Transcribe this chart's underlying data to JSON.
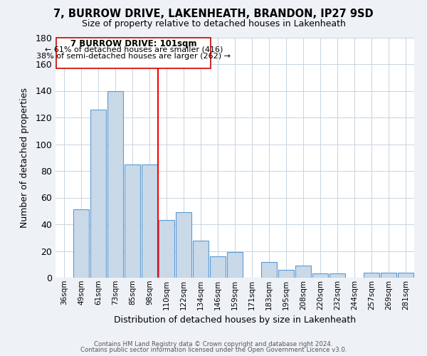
{
  "title": "7, BURROW DRIVE, LAKENHEATH, BRANDON, IP27 9SD",
  "subtitle": "Size of property relative to detached houses in Lakenheath",
  "xlabel": "Distribution of detached houses by size in Lakenheath",
  "ylabel": "Number of detached properties",
  "categories": [
    "36sqm",
    "49sqm",
    "61sqm",
    "73sqm",
    "85sqm",
    "98sqm",
    "110sqm",
    "122sqm",
    "134sqm",
    "146sqm",
    "159sqm",
    "171sqm",
    "183sqm",
    "195sqm",
    "208sqm",
    "220sqm",
    "232sqm",
    "244sqm",
    "257sqm",
    "269sqm",
    "281sqm"
  ],
  "values": [
    0,
    51,
    126,
    140,
    85,
    85,
    43,
    49,
    28,
    16,
    19,
    0,
    12,
    6,
    9,
    3,
    3,
    0,
    4,
    4,
    4
  ],
  "bar_color": "#c9d9e8",
  "bar_edge_color": "#5b9bd5",
  "ylim": [
    0,
    180
  ],
  "yticks": [
    0,
    20,
    40,
    60,
    80,
    100,
    120,
    140,
    160,
    180
  ],
  "red_line_x": 5.5,
  "annotation_title": "7 BURROW DRIVE: 101sqm",
  "annotation_line1": "← 61% of detached houses are smaller (416)",
  "annotation_line2": "38% of semi-detached houses are larger (262) →",
  "footer1": "Contains HM Land Registry data © Crown copyright and database right 2024.",
  "footer2": "Contains public sector information licensed under the Open Government Licence v3.0.",
  "background_color": "#eef2f7",
  "plot_bg_color": "#ffffff"
}
